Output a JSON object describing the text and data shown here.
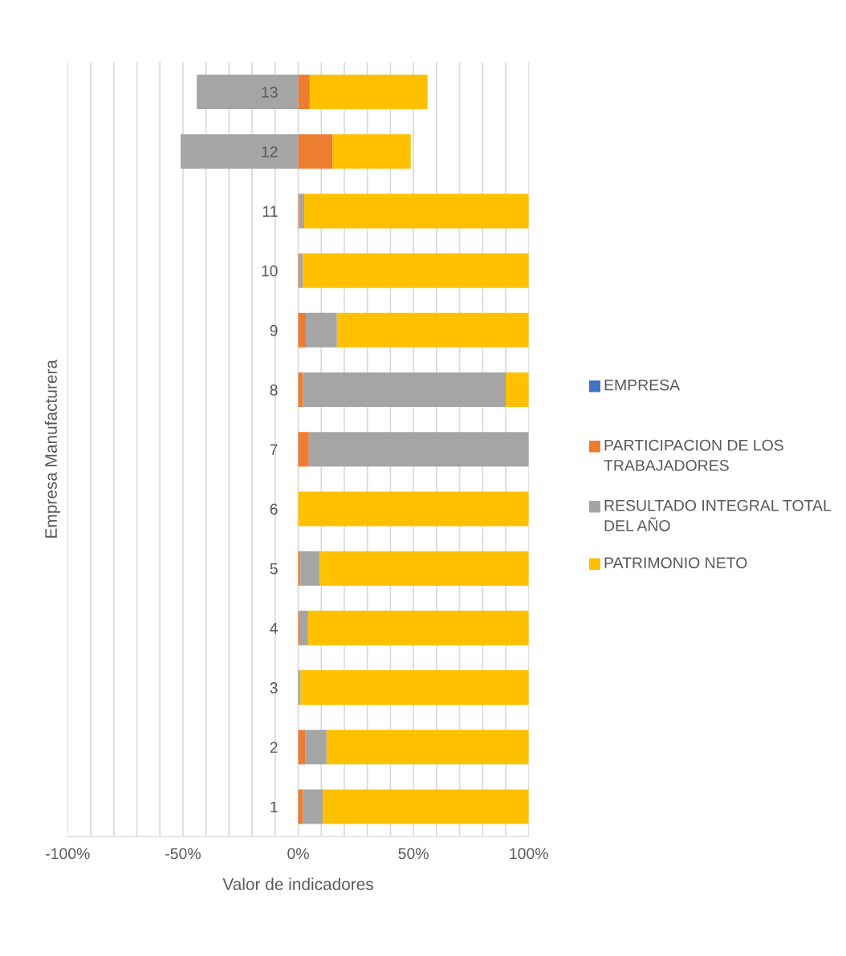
{
  "chart_data": {
    "type": "bar",
    "orientation": "horizontal",
    "stacked": true,
    "categories": [
      "13",
      "12",
      "11",
      "10",
      "9",
      "8",
      "7",
      "6",
      "5",
      "4",
      "3",
      "2",
      "1"
    ],
    "series": [
      {
        "name": "EMPRESA",
        "color": "#4472c4",
        "values": [
          0,
          0,
          0,
          0,
          0,
          0,
          0,
          0,
          0,
          0,
          0,
          0,
          0
        ]
      },
      {
        "name": "PARTICIPACION DE LOS TRABAJADORES",
        "color": "#ed7d31",
        "values": [
          5.0,
          14.9,
          0.4,
          0.4,
          3.3,
          2.1,
          4.6,
          0,
          1.0,
          0.5,
          0,
          3.2,
          2.1
        ]
      },
      {
        "name": "RESULTADO INTEGRAL TOTAL DEL AÑO",
        "color": "#a5a5a5",
        "values": [
          -44,
          -51,
          2.2,
          1.7,
          13.5,
          87.9,
          95.4,
          0,
          8.4,
          3.8,
          1.0,
          9.1,
          8.5
        ]
      },
      {
        "name": "PATRIMONIO NETO",
        "color": "#ffc000",
        "values": [
          51.1,
          33.9,
          97.4,
          97.9,
          83.2,
          10.0,
          0,
          100,
          90.6,
          95.7,
          99.0,
          87.7,
          89.4
        ]
      }
    ],
    "xlabel": "Valor de indicadores",
    "ylabel": "Empresa Manufacturera",
    "xlim": [
      -100,
      100
    ],
    "xticks": [
      {
        "value": -100,
        "label": "-100%"
      },
      {
        "value": -90,
        "label": null
      },
      {
        "value": -80,
        "label": null
      },
      {
        "value": -70,
        "label": null
      },
      {
        "value": -60,
        "label": null
      },
      {
        "value": -50,
        "label": "-50%"
      },
      {
        "value": -40,
        "label": null
      },
      {
        "value": -30,
        "label": null
      },
      {
        "value": -20,
        "label": null
      },
      {
        "value": -10,
        "label": null
      },
      {
        "value": 0,
        "label": "0%"
      },
      {
        "value": 10,
        "label": null
      },
      {
        "value": 20,
        "label": null
      },
      {
        "value": 30,
        "label": null
      },
      {
        "value": 40,
        "label": null
      },
      {
        "value": 50,
        "label": "50%"
      },
      {
        "value": 60,
        "label": null
      },
      {
        "value": 70,
        "label": null
      },
      {
        "value": 80,
        "label": null
      },
      {
        "value": 90,
        "label": null
      },
      {
        "value": 100,
        "label": "100%"
      }
    ],
    "grid": "x",
    "legend": "right"
  }
}
